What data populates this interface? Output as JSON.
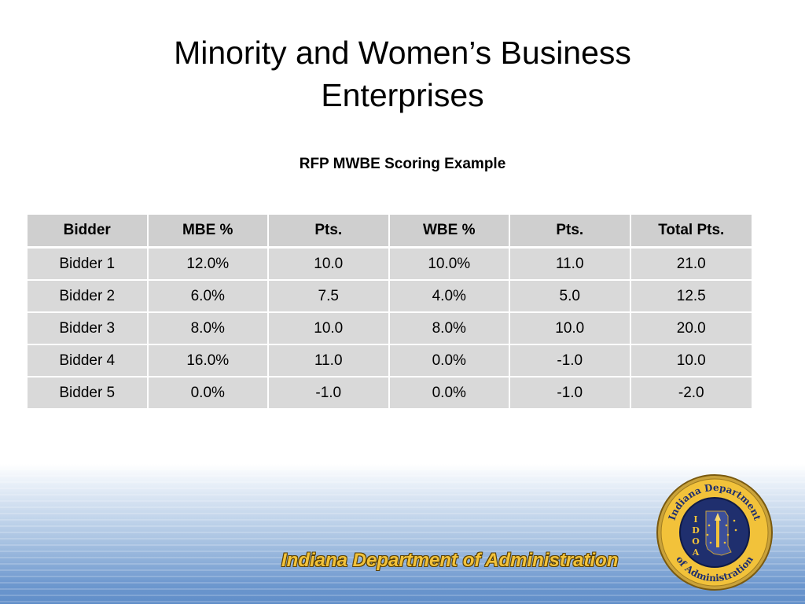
{
  "slide": {
    "title": "Minority and Women’s Business Enterprises",
    "subtitle": "RFP MWBE Scoring Example"
  },
  "table": {
    "headers": [
      "Bidder",
      "MBE %",
      "Pts.",
      "WBE %",
      "Pts.",
      "Total Pts."
    ],
    "rows": [
      [
        "Bidder 1",
        "12.0%",
        "10.0",
        "10.0%",
        "11.0",
        "21.0"
      ],
      [
        "Bidder 2",
        "6.0%",
        "7.5",
        "4.0%",
        "5.0",
        "12.5"
      ],
      [
        "Bidder 3",
        "8.0%",
        "10.0",
        "8.0%",
        "10.0",
        "20.0"
      ],
      [
        "Bidder 4",
        "16.0%",
        "11.0",
        "0.0%",
        "-1.0",
        "10.0"
      ],
      [
        "Bidder 5",
        "0.0%",
        "-1.0",
        "0.0%",
        "-1.0",
        "-2.0"
      ]
    ]
  },
  "footer": {
    "org_name": "Indiana Department of Administration",
    "seal": {
      "ring_text_top": "Indiana Department",
      "ring_text_bottom": "of Administration",
      "initials": [
        "I",
        "D",
        "O",
        "A"
      ]
    }
  },
  "colors": {
    "table_cell": "#d9d9d9",
    "table_header": "#cfcfcf",
    "band_blue": "#5f8dc8",
    "gold": "#f2c23a",
    "seal_navy": "#1f2f6e"
  }
}
